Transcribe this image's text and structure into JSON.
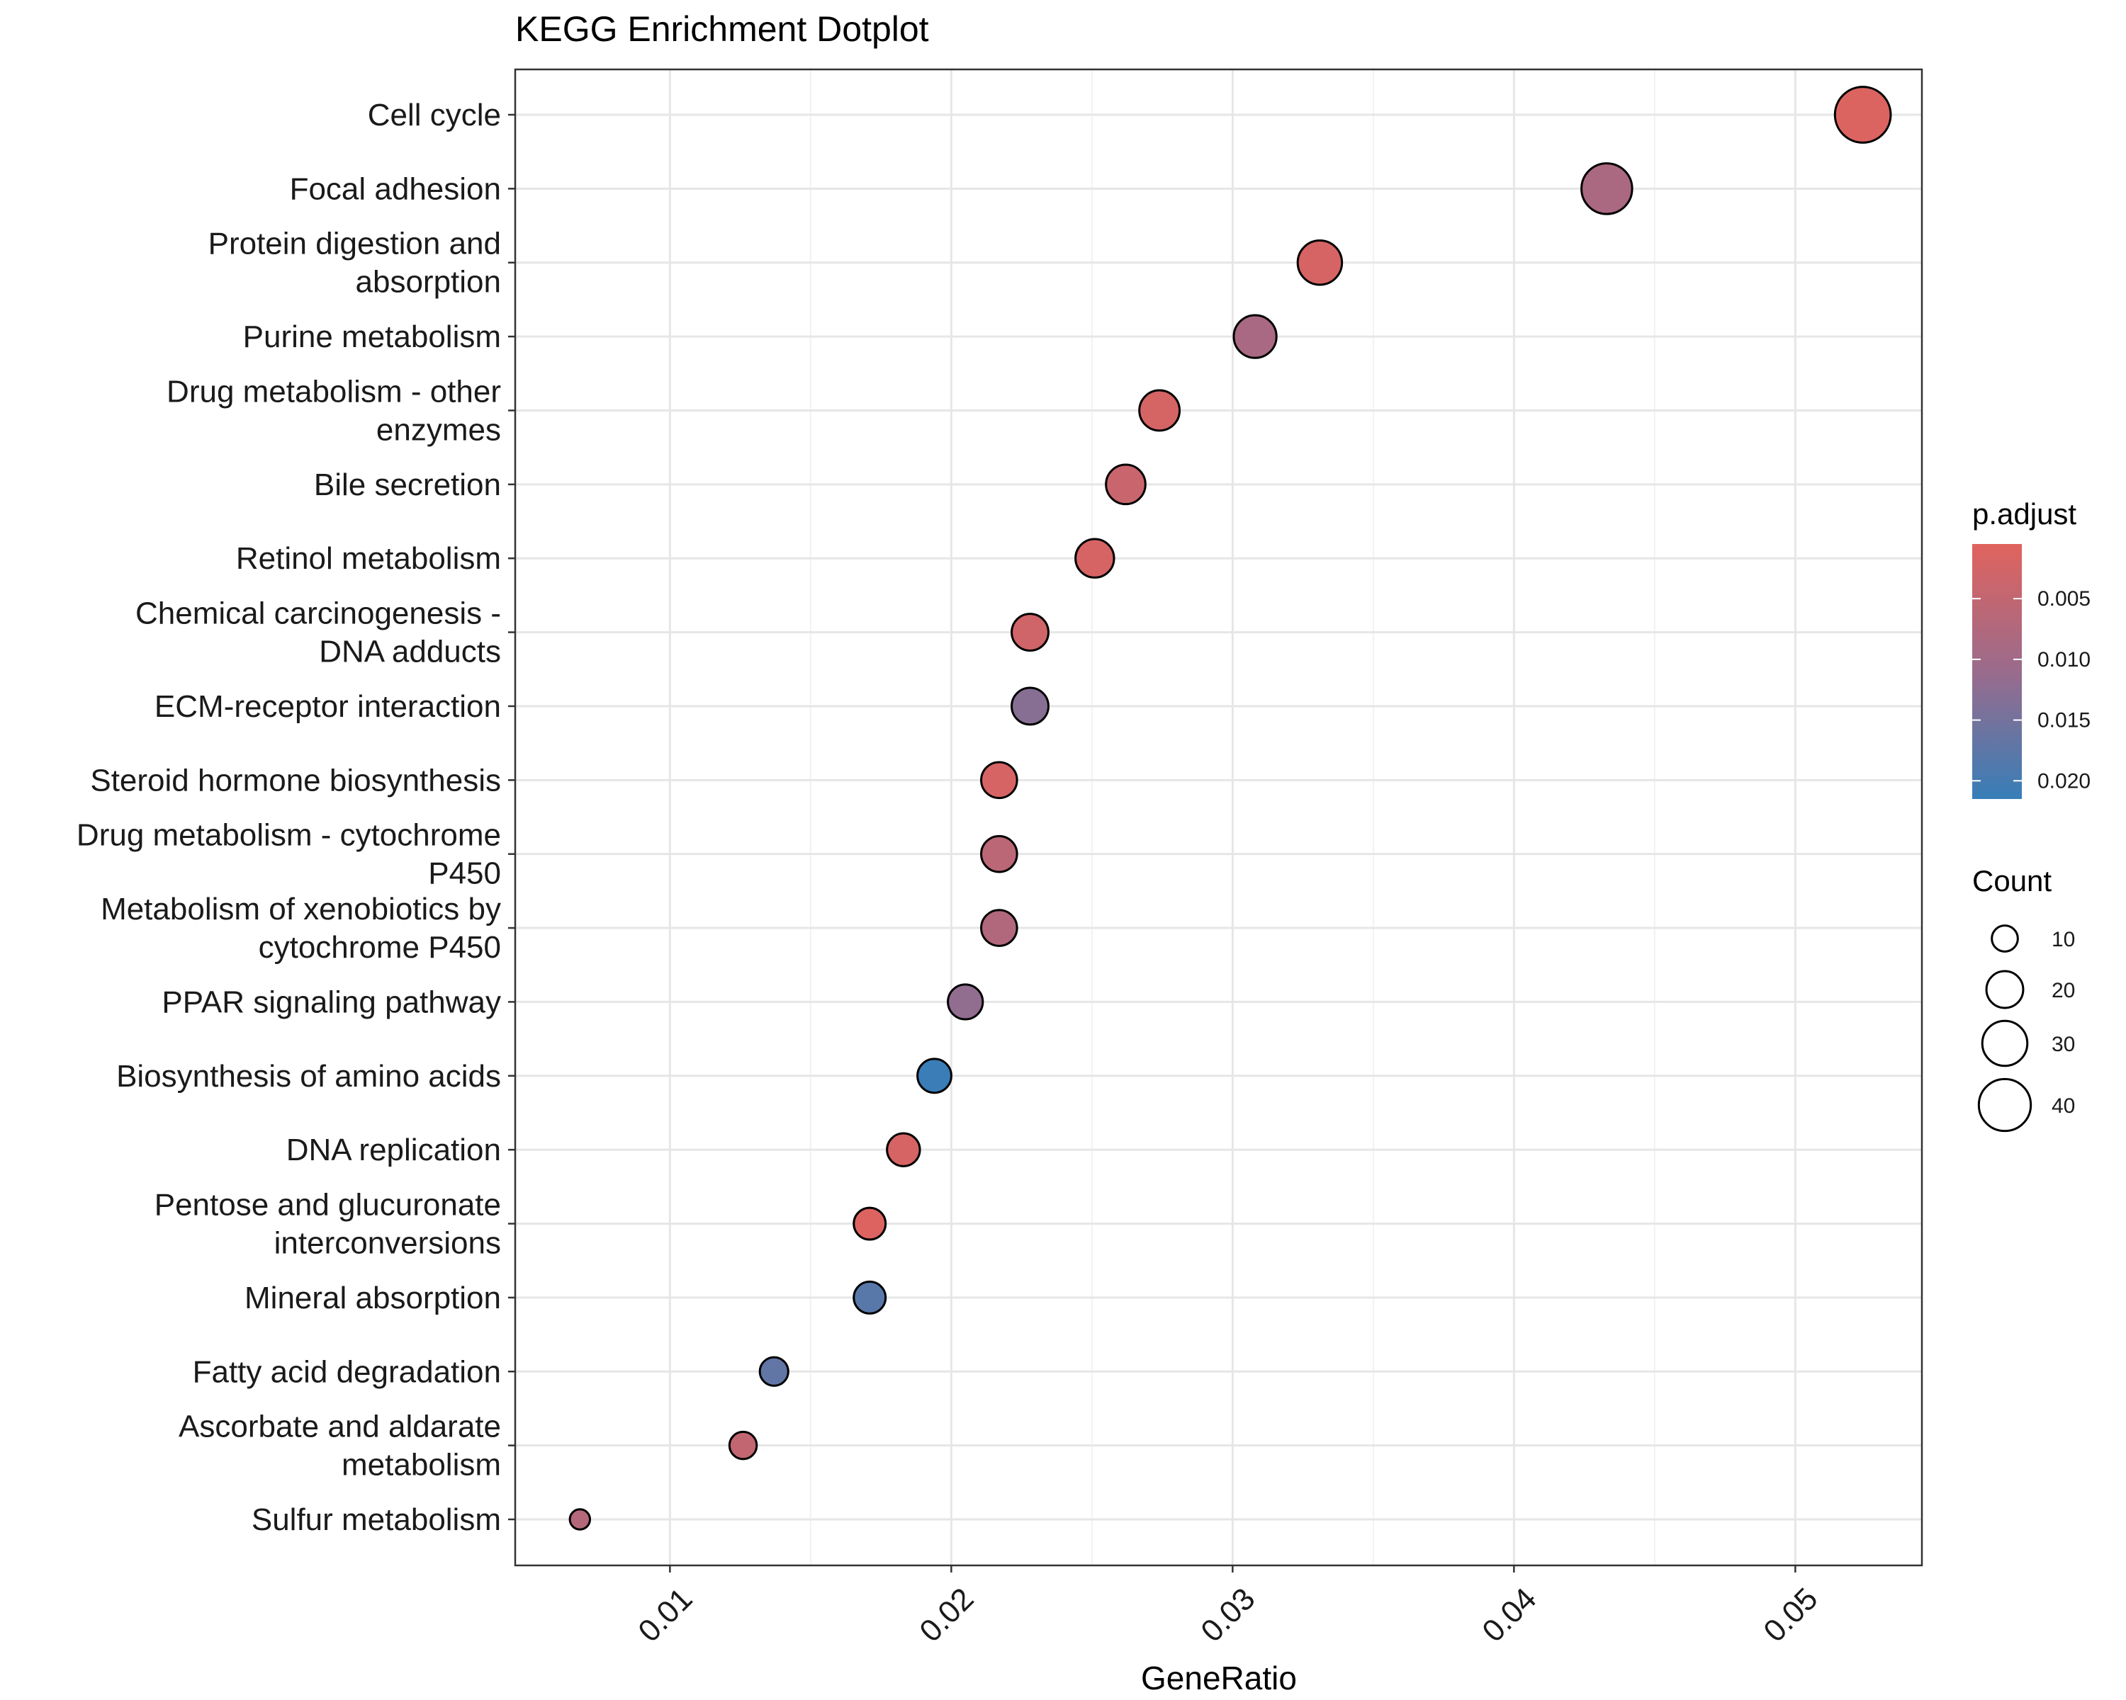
{
  "chart_data": {
    "type": "scatter",
    "title": "KEGG Enrichment Dotplot",
    "xlabel": "GeneRatio",
    "ylabel": "",
    "xlim": [
      0.0045,
      0.0545
    ],
    "xticks": [
      0.01,
      0.02,
      0.03,
      0.04,
      0.05
    ],
    "xtick_labels": [
      "0.01",
      "0.02",
      "0.03",
      "0.04",
      "0.05"
    ],
    "grid": true,
    "legend_position": "right",
    "color_scale": {
      "title": "p.adjust",
      "low_color": "#e0635e",
      "mid_color": "#9a6b8c",
      "high_color": "#377eb8",
      "range": [
        0.0005,
        0.0215
      ],
      "ticks": [
        0.005,
        0.01,
        0.015,
        0.02
      ],
      "tick_labels": [
        "0.005",
        "0.010",
        "0.015",
        "0.020"
      ]
    },
    "size_scale": {
      "title": "Count",
      "ticks": [
        10,
        20,
        30,
        40
      ],
      "tick_labels": [
        "10",
        "20",
        "30",
        "40"
      ]
    },
    "points": [
      {
        "term": [
          "Cell cycle"
        ],
        "gene_ratio": 0.0524,
        "count": 46,
        "p_adjust": 0.0012
      },
      {
        "term": [
          "Focal adhesion"
        ],
        "gene_ratio": 0.0433,
        "count": 38,
        "p_adjust": 0.0085
      },
      {
        "term": [
          "Protein digestion and",
          "absorption"
        ],
        "gene_ratio": 0.0331,
        "count": 29,
        "p_adjust": 0.002
      },
      {
        "term": [
          "Purine metabolism"
        ],
        "gene_ratio": 0.0308,
        "count": 27,
        "p_adjust": 0.0088
      },
      {
        "term": [
          "Drug metabolism - other",
          "enzymes"
        ],
        "gene_ratio": 0.0274,
        "count": 24,
        "p_adjust": 0.0022
      },
      {
        "term": [
          "Bile secretion"
        ],
        "gene_ratio": 0.0262,
        "count": 23,
        "p_adjust": 0.004
      },
      {
        "term": [
          "Retinol metabolism"
        ],
        "gene_ratio": 0.0251,
        "count": 22,
        "p_adjust": 0.002
      },
      {
        "term": [
          "Chemical carcinogenesis -",
          "DNA adducts"
        ],
        "gene_ratio": 0.0228,
        "count": 20,
        "p_adjust": 0.003
      },
      {
        "term": [
          "ECM-receptor interaction"
        ],
        "gene_ratio": 0.0228,
        "count": 20,
        "p_adjust": 0.013
      },
      {
        "term": [
          "Steroid hormone biosynthesis"
        ],
        "gene_ratio": 0.0217,
        "count": 19,
        "p_adjust": 0.002
      },
      {
        "term": [
          "Drug metabolism - cytochrome",
          "P450"
        ],
        "gene_ratio": 0.0217,
        "count": 19,
        "p_adjust": 0.006
      },
      {
        "term": [
          "Metabolism of xenobiotics by",
          "cytochrome P450"
        ],
        "gene_ratio": 0.0217,
        "count": 19,
        "p_adjust": 0.0075
      },
      {
        "term": [
          "PPAR signaling pathway"
        ],
        "gene_ratio": 0.0205,
        "count": 18,
        "p_adjust": 0.012
      },
      {
        "term": [
          "Biosynthesis of amino acids"
        ],
        "gene_ratio": 0.0194,
        "count": 17,
        "p_adjust": 0.0212
      },
      {
        "term": [
          "DNA replication"
        ],
        "gene_ratio": 0.0183,
        "count": 16,
        "p_adjust": 0.002
      },
      {
        "term": [
          "Pentose and glucuronate",
          "interconversions"
        ],
        "gene_ratio": 0.0171,
        "count": 15,
        "p_adjust": 0.001
      },
      {
        "term": [
          "Mineral absorption"
        ],
        "gene_ratio": 0.0171,
        "count": 15,
        "p_adjust": 0.018
      },
      {
        "term": [
          "Fatty acid degradation"
        ],
        "gene_ratio": 0.0137,
        "count": 12,
        "p_adjust": 0.017
      },
      {
        "term": [
          "Ascorbate and aldarate",
          "metabolism"
        ],
        "gene_ratio": 0.0126,
        "count": 11,
        "p_adjust": 0.005
      },
      {
        "term": [
          "Sulfur metabolism"
        ],
        "gene_ratio": 0.0068,
        "count": 6,
        "p_adjust": 0.007
      }
    ]
  }
}
